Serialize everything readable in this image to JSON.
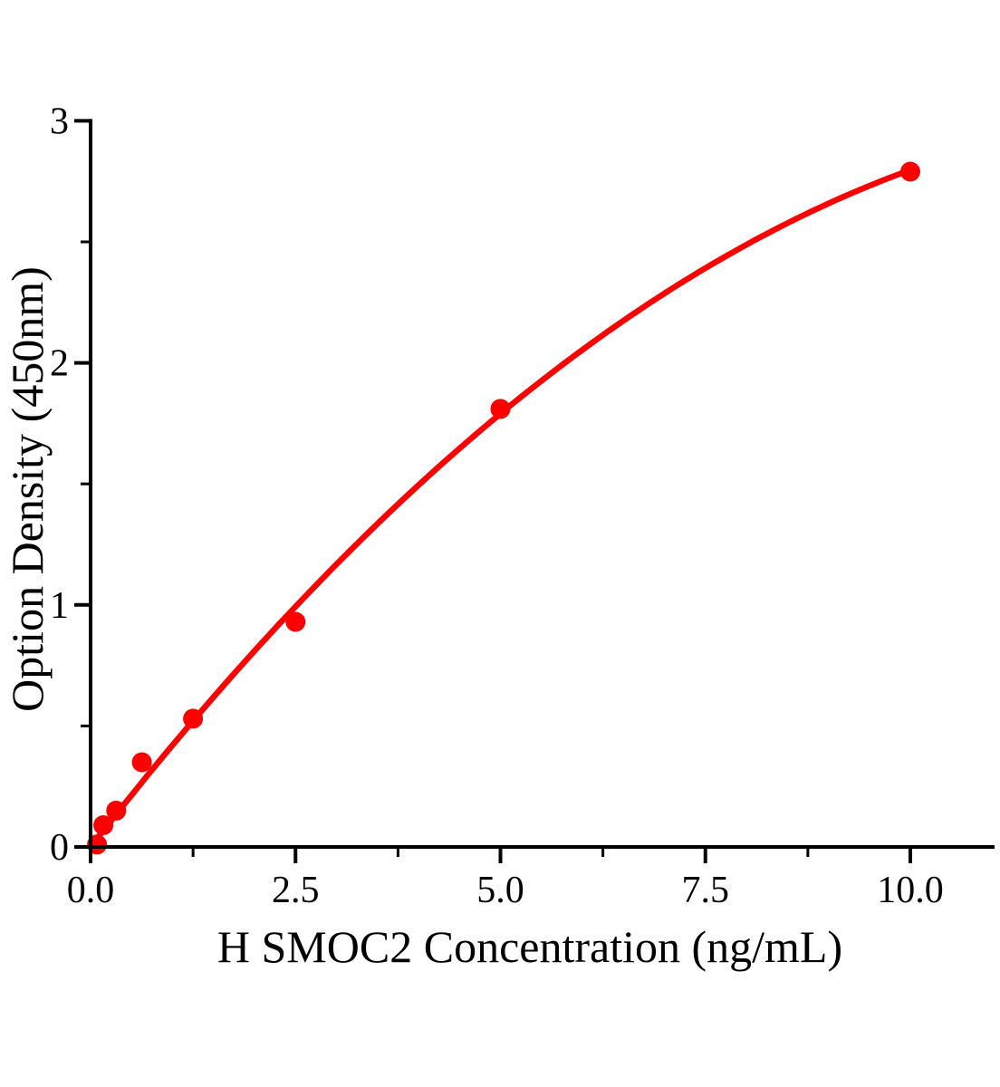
{
  "figure": {
    "background": "#ffffff"
  },
  "chart_data": {
    "type": "scatter",
    "title": "",
    "xlabel": "H SMOC2 Concentration (ng/mL)",
    "ylabel": "Option Density (450nm)",
    "xlim": [
      0,
      11
    ],
    "ylim": [
      0,
      3
    ],
    "grid": false,
    "legend": false,
    "series_color": "#ff0000",
    "axis_color": "#000000",
    "x_major_ticks": [
      {
        "v": 0,
        "label": "0.0"
      },
      {
        "v": 2.5,
        "label": "2.5"
      },
      {
        "v": 5,
        "label": "5.0"
      },
      {
        "v": 7.5,
        "label": "7.5"
      },
      {
        "v": 10,
        "label": "10.0"
      }
    ],
    "x_minor_ticks": [
      1.25,
      3.75,
      6.25,
      8.75
    ],
    "y_major_ticks": [
      {
        "v": 0,
        "label": "0"
      },
      {
        "v": 1,
        "label": "1"
      },
      {
        "v": 2,
        "label": "2"
      },
      {
        "v": 3,
        "label": "3"
      }
    ],
    "y_minor_ticks": [
      0.5,
      1.5,
      2.5
    ],
    "points": [
      {
        "x": 0.078,
        "y": 0.01
      },
      {
        "x": 0.156,
        "y": 0.09
      },
      {
        "x": 0.313,
        "y": 0.15
      },
      {
        "x": 0.625,
        "y": 0.35
      },
      {
        "x": 1.25,
        "y": 0.53
      },
      {
        "x": 2.5,
        "y": 0.93
      },
      {
        "x": 5,
        "y": 1.81
      },
      {
        "x": 10,
        "y": 2.79
      }
    ],
    "trendline": {
      "type": "quadratic",
      "equation": "y = 0.4363x - 0.01566x^2",
      "coefficients": {
        "a": 0.4363,
        "b": -0.01566
      },
      "x_range": [
        0,
        10
      ]
    }
  }
}
